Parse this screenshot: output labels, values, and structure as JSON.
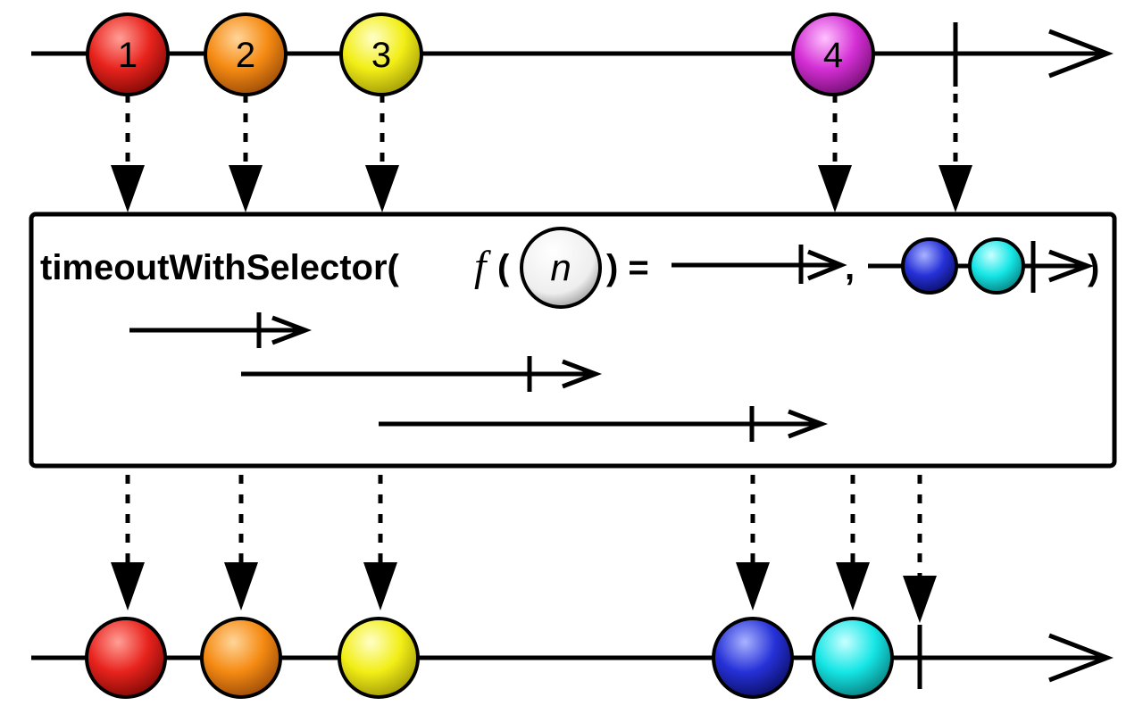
{
  "operator": {
    "name": "timeoutWithSelector(",
    "f": "f",
    "open_paren": "(",
    "param": "n",
    "close_equals": ") =",
    "comma": ",",
    "close_paren": ")"
  },
  "input_marbles": [
    {
      "label": "1",
      "color": "#e8231d"
    },
    {
      "label": "2",
      "color": "#f58a12"
    },
    {
      "label": "3",
      "color": "#f2ee16"
    },
    {
      "label": "4",
      "color": "#d42fd4"
    }
  ],
  "output_marbles": [
    {
      "label": "",
      "color": "#e8231d"
    },
    {
      "label": "",
      "color": "#f58a12"
    },
    {
      "label": "",
      "color": "#f2ee16"
    },
    {
      "label": "",
      "color": "#2631d8"
    },
    {
      "label": "",
      "color": "#16e6e6"
    }
  ],
  "fallback_marbles": [
    {
      "color": "#2631d8"
    },
    {
      "color": "#16e6e6"
    }
  ]
}
